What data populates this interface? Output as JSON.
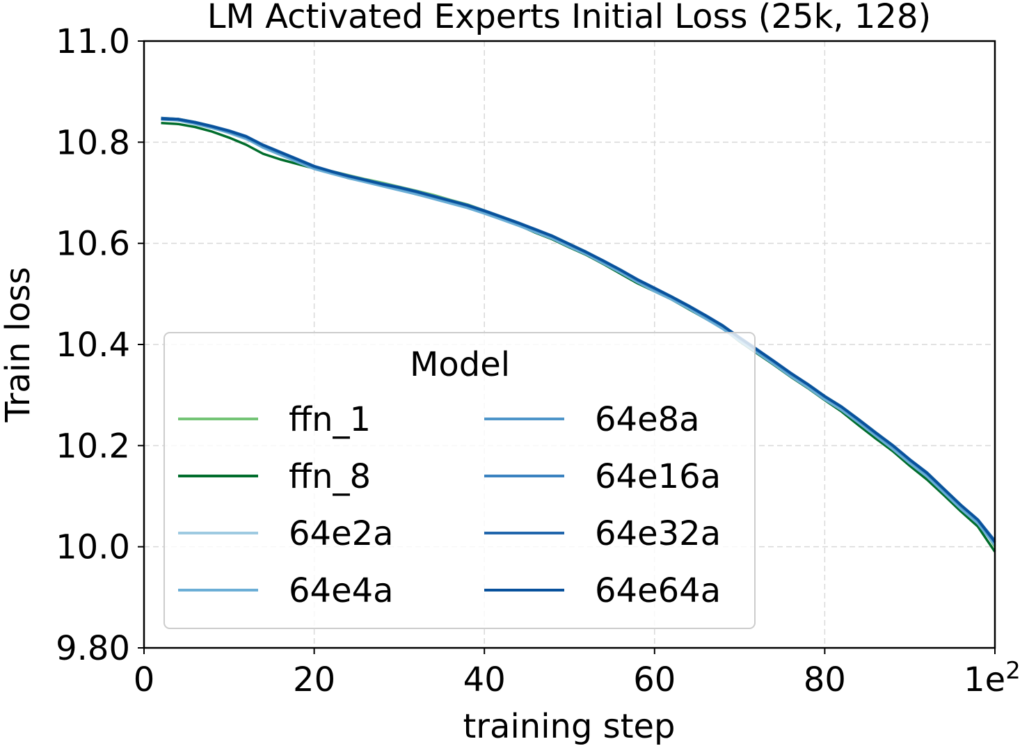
{
  "chart_data": {
    "type": "line",
    "title": "LM Activated Experts Initial Loss (25k, 128)",
    "xlabel": "training step",
    "ylabel": "Train loss",
    "x_offset_label": "1e2",
    "xlim": [
      0,
      1
    ],
    "ylim": [
      9.8,
      11.0
    ],
    "x_ticks": [
      0,
      0.2,
      0.4,
      0.6,
      0.8
    ],
    "x_tick_labels": [
      "0",
      "20",
      "40",
      "60",
      "80"
    ],
    "y_ticks": [
      9.8,
      10.0,
      10.2,
      10.4,
      10.6,
      10.8,
      11.0
    ],
    "y_tick_labels": [
      "9.80",
      "10.0",
      "10.2",
      "10.4",
      "10.6",
      "10.8",
      "11.0"
    ],
    "grid": true,
    "legend": {
      "title": "Model",
      "placement": "lower-left",
      "columns": 2
    },
    "x": [
      0.02,
      0.04,
      0.06,
      0.08,
      0.1,
      0.12,
      0.14,
      0.16,
      0.18,
      0.2,
      0.22,
      0.24,
      0.26,
      0.28,
      0.3,
      0.32,
      0.34,
      0.36,
      0.38,
      0.4,
      0.42,
      0.44,
      0.46,
      0.48,
      0.5,
      0.52,
      0.54,
      0.56,
      0.58,
      0.6,
      0.62,
      0.64,
      0.66,
      0.68,
      0.7,
      0.72,
      0.74,
      0.76,
      0.78,
      0.8,
      0.82,
      0.84,
      0.86,
      0.88,
      0.9,
      0.92,
      0.94,
      0.96,
      0.98,
      1.0
    ],
    "series": [
      {
        "name": "ffn_1",
        "color": "#74c476",
        "values": [
          10.848,
          10.846,
          10.84,
          10.832,
          10.822,
          10.81,
          10.793,
          10.779,
          10.766,
          10.752,
          10.743,
          10.735,
          10.727,
          10.72,
          10.712,
          10.704,
          10.696,
          10.686,
          10.677,
          10.665,
          10.653,
          10.641,
          10.627,
          10.615,
          10.599,
          10.583,
          10.565,
          10.548,
          10.528,
          10.511,
          10.495,
          10.477,
          10.457,
          10.438,
          10.413,
          10.39,
          10.367,
          10.343,
          10.322,
          10.298,
          10.277,
          10.252,
          10.226,
          10.201,
          10.172,
          10.147,
          10.115,
          10.083,
          10.053,
          10.0
        ]
      },
      {
        "name": "ffn_8",
        "color": "#006d2c",
        "values": [
          10.838,
          10.836,
          10.83,
          10.821,
          10.809,
          10.795,
          10.777,
          10.766,
          10.757,
          10.748,
          10.74,
          10.729,
          10.722,
          10.714,
          10.706,
          10.697,
          10.689,
          10.68,
          10.671,
          10.66,
          10.648,
          10.636,
          10.621,
          10.608,
          10.592,
          10.577,
          10.559,
          10.54,
          10.521,
          10.505,
          10.489,
          10.47,
          10.451,
          10.432,
          10.406,
          10.383,
          10.36,
          10.336,
          10.314,
          10.29,
          10.267,
          10.24,
          10.214,
          10.189,
          10.16,
          10.133,
          10.102,
          10.07,
          10.04,
          9.99
        ]
      },
      {
        "name": "64e2a",
        "color": "#9ecae1",
        "values": [
          10.846,
          10.844,
          10.837,
          10.829,
          10.818,
          10.806,
          10.791,
          10.777,
          10.763,
          10.749,
          10.739,
          10.731,
          10.723,
          10.716,
          10.708,
          10.7,
          10.691,
          10.682,
          10.673,
          10.661,
          10.649,
          10.637,
          10.624,
          10.611,
          10.595,
          10.579,
          10.561,
          10.544,
          10.524,
          10.507,
          10.49,
          10.473,
          10.453,
          10.434,
          10.409,
          10.385,
          10.362,
          10.338,
          10.317,
          10.293,
          10.272,
          10.246,
          10.22,
          10.195,
          10.167,
          10.141,
          10.109,
          10.077,
          10.048,
          10.005
        ]
      },
      {
        "name": "64e4a",
        "color": "#6baed6",
        "values": [
          10.845,
          10.843,
          10.836,
          10.828,
          10.819,
          10.807,
          10.789,
          10.775,
          10.761,
          10.747,
          10.738,
          10.729,
          10.721,
          10.713,
          10.705,
          10.697,
          10.688,
          10.679,
          10.67,
          10.659,
          10.647,
          10.635,
          10.622,
          10.609,
          10.593,
          10.578,
          10.56,
          10.542,
          10.523,
          10.505,
          10.489,
          10.471,
          10.451,
          10.431,
          10.407,
          10.384,
          10.361,
          10.337,
          10.315,
          10.291,
          10.27,
          10.245,
          10.219,
          10.193,
          10.165,
          10.139,
          10.107,
          10.075,
          10.046,
          10.003
        ]
      },
      {
        "name": "64e8a",
        "color": "#4e95c9",
        "values": [
          10.846,
          10.845,
          10.838,
          10.83,
          10.82,
          10.809,
          10.792,
          10.778,
          10.764,
          10.75,
          10.741,
          10.732,
          10.724,
          10.716,
          10.709,
          10.701,
          10.692,
          10.683,
          10.674,
          10.663,
          10.651,
          10.639,
          10.626,
          10.613,
          10.597,
          10.581,
          10.563,
          10.546,
          10.526,
          10.509,
          10.493,
          10.475,
          10.455,
          10.436,
          10.411,
          10.388,
          10.365,
          10.341,
          10.32,
          10.296,
          10.275,
          10.249,
          10.223,
          10.198,
          10.17,
          10.144,
          10.112,
          10.08,
          10.051,
          10.008
        ]
      },
      {
        "name": "64e16a",
        "color": "#3a82c0",
        "values": [
          10.847,
          10.846,
          10.839,
          10.831,
          10.822,
          10.811,
          10.794,
          10.78,
          10.766,
          10.752,
          10.742,
          10.733,
          10.725,
          10.717,
          10.71,
          10.702,
          10.693,
          10.684,
          10.675,
          10.664,
          10.652,
          10.64,
          10.627,
          10.614,
          10.598,
          10.582,
          10.565,
          10.547,
          10.528,
          10.511,
          10.494,
          10.476,
          10.457,
          10.437,
          10.413,
          10.39,
          10.367,
          10.343,
          10.321,
          10.297,
          10.276,
          10.251,
          10.225,
          10.2,
          10.171,
          10.145,
          10.114,
          10.082,
          10.053,
          10.01
        ]
      },
      {
        "name": "64e32a",
        "color": "#2166ac",
        "values": [
          10.848,
          10.846,
          10.84,
          10.832,
          10.823,
          10.812,
          10.795,
          10.781,
          10.767,
          10.753,
          10.743,
          10.734,
          10.726,
          10.718,
          10.711,
          10.703,
          10.694,
          10.685,
          10.676,
          10.665,
          10.653,
          10.641,
          10.628,
          10.615,
          10.599,
          10.583,
          10.566,
          10.548,
          10.529,
          10.512,
          10.495,
          10.477,
          10.458,
          10.438,
          10.414,
          10.391,
          10.368,
          10.344,
          10.322,
          10.298,
          10.277,
          10.252,
          10.226,
          10.201,
          10.173,
          10.147,
          10.115,
          10.083,
          10.054,
          10.012
        ]
      },
      {
        "name": "64e64a",
        "color": "#08519c",
        "values": [
          10.846,
          10.845,
          10.839,
          10.831,
          10.822,
          10.811,
          10.794,
          10.78,
          10.766,
          10.752,
          10.742,
          10.733,
          10.725,
          10.717,
          10.71,
          10.702,
          10.693,
          10.684,
          10.675,
          10.664,
          10.652,
          10.64,
          10.627,
          10.614,
          10.598,
          10.582,
          10.565,
          10.547,
          10.528,
          10.511,
          10.494,
          10.476,
          10.457,
          10.437,
          10.413,
          10.39,
          10.367,
          10.343,
          10.321,
          10.297,
          10.276,
          10.251,
          10.225,
          10.2,
          10.172,
          10.146,
          10.114,
          10.082,
          10.053,
          10.009
        ]
      }
    ]
  }
}
